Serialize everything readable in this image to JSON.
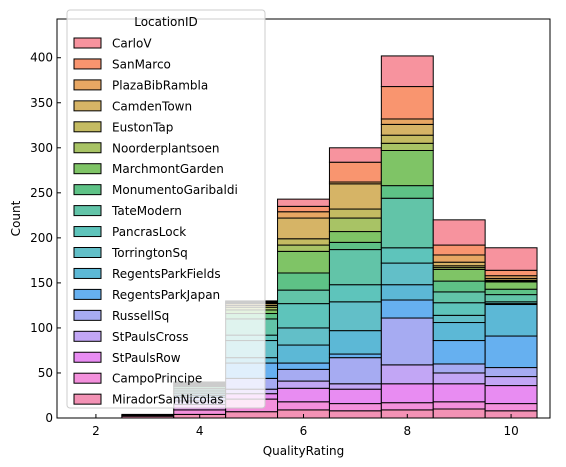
{
  "chart_data": {
    "type": "bar",
    "stacked": true,
    "xlabel": "QualityRating",
    "ylabel": "Count",
    "xlim": [
      1.25,
      10.75
    ],
    "ylim": [
      0,
      443
    ],
    "xticks": [
      "2",
      "4",
      "6",
      "8",
      "10"
    ],
    "xtick_values": [
      2,
      4,
      6,
      8,
      10
    ],
    "yticks": [
      "0",
      "50",
      "100",
      "150",
      "200",
      "250",
      "300",
      "350",
      "400"
    ],
    "ytick_values": [
      0,
      50,
      100,
      150,
      200,
      250,
      300,
      350,
      400
    ],
    "bins": [
      [
        1.5,
        2.5
      ],
      [
        2.5,
        3.5
      ],
      [
        3.5,
        4.5
      ],
      [
        4.5,
        5.5
      ],
      [
        5.5,
        6.5
      ],
      [
        6.5,
        7.5
      ],
      [
        7.5,
        8.5
      ],
      [
        8.5,
        9.5
      ],
      [
        9.5,
        10.5
      ]
    ],
    "legend": {
      "title": "LocationID",
      "placement": "upper-left"
    },
    "series": [
      {
        "name": "CarloV",
        "color": "#f7939e",
        "values": [
          0,
          0,
          0,
          1,
          8,
          16,
          34,
          28,
          25
        ]
      },
      {
        "name": "SanMarco",
        "color": "#f9956f",
        "values": [
          0,
          0,
          0,
          1,
          6,
          22,
          36,
          11,
          6
        ]
      },
      {
        "name": "PlazaBibRambla",
        "color": "#e8a763",
        "values": [
          0,
          0,
          1,
          1,
          7,
          2,
          6,
          8,
          3
        ]
      },
      {
        "name": "CamdenTown",
        "color": "#d6b466",
        "values": [
          0,
          0,
          1,
          2,
          23,
          28,
          12,
          4,
          2
        ]
      },
      {
        "name": "EustonTap",
        "color": "#c4bb62",
        "values": [
          0,
          0,
          1,
          2,
          7,
          10,
          9,
          2,
          1
        ]
      },
      {
        "name": "Noorderplantsoen",
        "color": "#a8c365",
        "values": [
          0,
          0,
          1,
          3,
          7,
          15,
          8,
          2,
          1
        ]
      },
      {
        "name": "MarchmontGarden",
        "color": "#7fc466",
        "values": [
          0,
          0,
          1,
          4,
          24,
          12,
          39,
          13,
          8
        ]
      },
      {
        "name": "MonumentoGaribaldi",
        "color": "#5ec286",
        "values": [
          0,
          0,
          2,
          6,
          19,
          8,
          14,
          12,
          6
        ]
      },
      {
        "name": "TateModern",
        "color": "#62c4a8",
        "values": [
          0,
          0,
          2,
          18,
          15,
          39,
          55,
          12,
          8
        ]
      },
      {
        "name": "PancrasLock",
        "color": "#5ec4bb",
        "values": [
          0,
          0,
          2,
          6,
          27,
          19,
          17,
          14,
          2
        ]
      },
      {
        "name": "TorringtonSq",
        "color": "#62bfc8",
        "values": [
          0,
          0,
          2,
          19,
          19,
          32,
          24,
          8,
          1
        ]
      },
      {
        "name": "RegentsParkFields",
        "color": "#5cb8d6",
        "values": [
          0,
          0,
          2,
          6,
          20,
          26,
          17,
          20,
          35
        ]
      },
      {
        "name": "RegentsParkJapan",
        "color": "#66b0f0",
        "values": [
          0,
          0,
          2,
          17,
          7,
          4,
          20,
          26,
          35
        ]
      },
      {
        "name": "RussellSq",
        "color": "#a6abf2",
        "values": [
          0,
          0,
          4,
          12,
          13,
          29,
          52,
          10,
          10
        ]
      },
      {
        "name": "StPaulsCross",
        "color": "#c2a6f5",
        "values": [
          0,
          0,
          4,
          5,
          8,
          6,
          21,
          12,
          10
        ]
      },
      {
        "name": "StPaulsRow",
        "color": "#e88cf2",
        "values": [
          0,
          1,
          6,
          6,
          15,
          16,
          21,
          20,
          20
        ]
      },
      {
        "name": "CampoPrincipe",
        "color": "#f390dc",
        "values": [
          0,
          1,
          5,
          14,
          9,
          8,
          8,
          8,
          8
        ]
      },
      {
        "name": "MiradorSanNicolas",
        "color": "#f392b5",
        "values": [
          0,
          2,
          4,
          7,
          9,
          8,
          9,
          10,
          8
        ]
      }
    ]
  }
}
